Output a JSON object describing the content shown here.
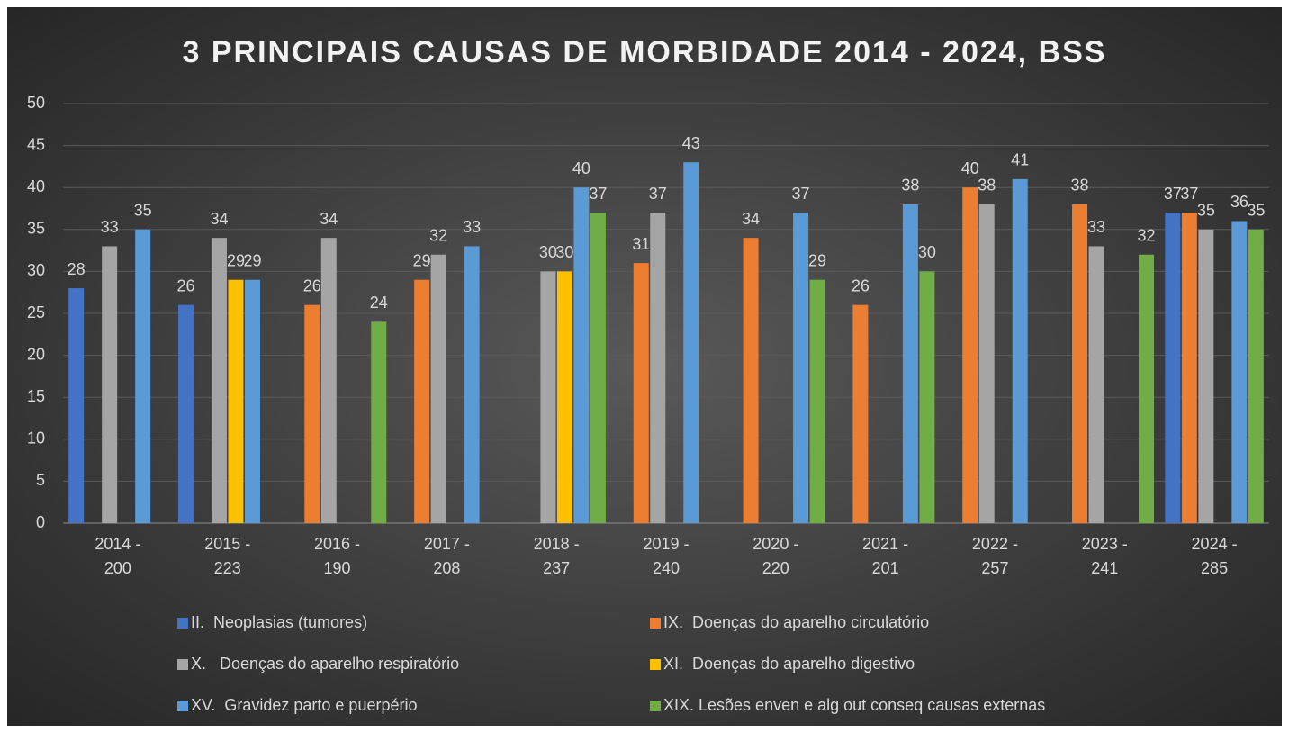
{
  "chart_data": {
    "type": "bar",
    "title": "3 PRINCIPAIS CAUSAS DE MORBIDADE 2014 - 2024, BSS",
    "categories": [
      "2014 - 200",
      "2015 - 223",
      "2016 - 190",
      "2017 - 208",
      "2018 - 237",
      "2019 - 240",
      "2020 - 220",
      "2021 - 201",
      "2022 - 257",
      "2023 - 241",
      "2024 - 285"
    ],
    "series": [
      {
        "name": "II.  Neoplasias (tumores)",
        "color": "#4472c4",
        "values": [
          28,
          26,
          null,
          null,
          null,
          null,
          null,
          null,
          null,
          null,
          37
        ]
      },
      {
        "name": "IX.  Doenças do aparelho circulatório",
        "color": "#ed7d31",
        "values": [
          null,
          null,
          26,
          29,
          null,
          31,
          34,
          26,
          40,
          38,
          37
        ]
      },
      {
        "name": "X.   Doenças do aparelho respiratório",
        "color": "#a5a5a5",
        "values": [
          33,
          34,
          34,
          32,
          30,
          37,
          null,
          null,
          38,
          33,
          35
        ]
      },
      {
        "name": "XI.  Doenças do aparelho digestivo",
        "color": "#ffc000",
        "values": [
          null,
          29,
          null,
          null,
          30,
          null,
          null,
          null,
          null,
          null,
          null
        ]
      },
      {
        "name": "XV.  Gravidez parto e puerpério",
        "color": "#5b9bd5",
        "values": [
          35,
          29,
          null,
          33,
          40,
          43,
          37,
          38,
          41,
          null,
          36
        ]
      },
      {
        "name": "XIX. Lesões enven e alg out conseq causas externas",
        "color": "#70ad47",
        "values": [
          null,
          null,
          24,
          null,
          37,
          null,
          29,
          30,
          null,
          32,
          35
        ]
      }
    ],
    "ylim": [
      0,
      50
    ],
    "yticks": [
      0,
      5,
      10,
      15,
      20,
      25,
      30,
      35,
      40,
      45,
      50
    ],
    "grid": true,
    "legend": "bottom"
  }
}
